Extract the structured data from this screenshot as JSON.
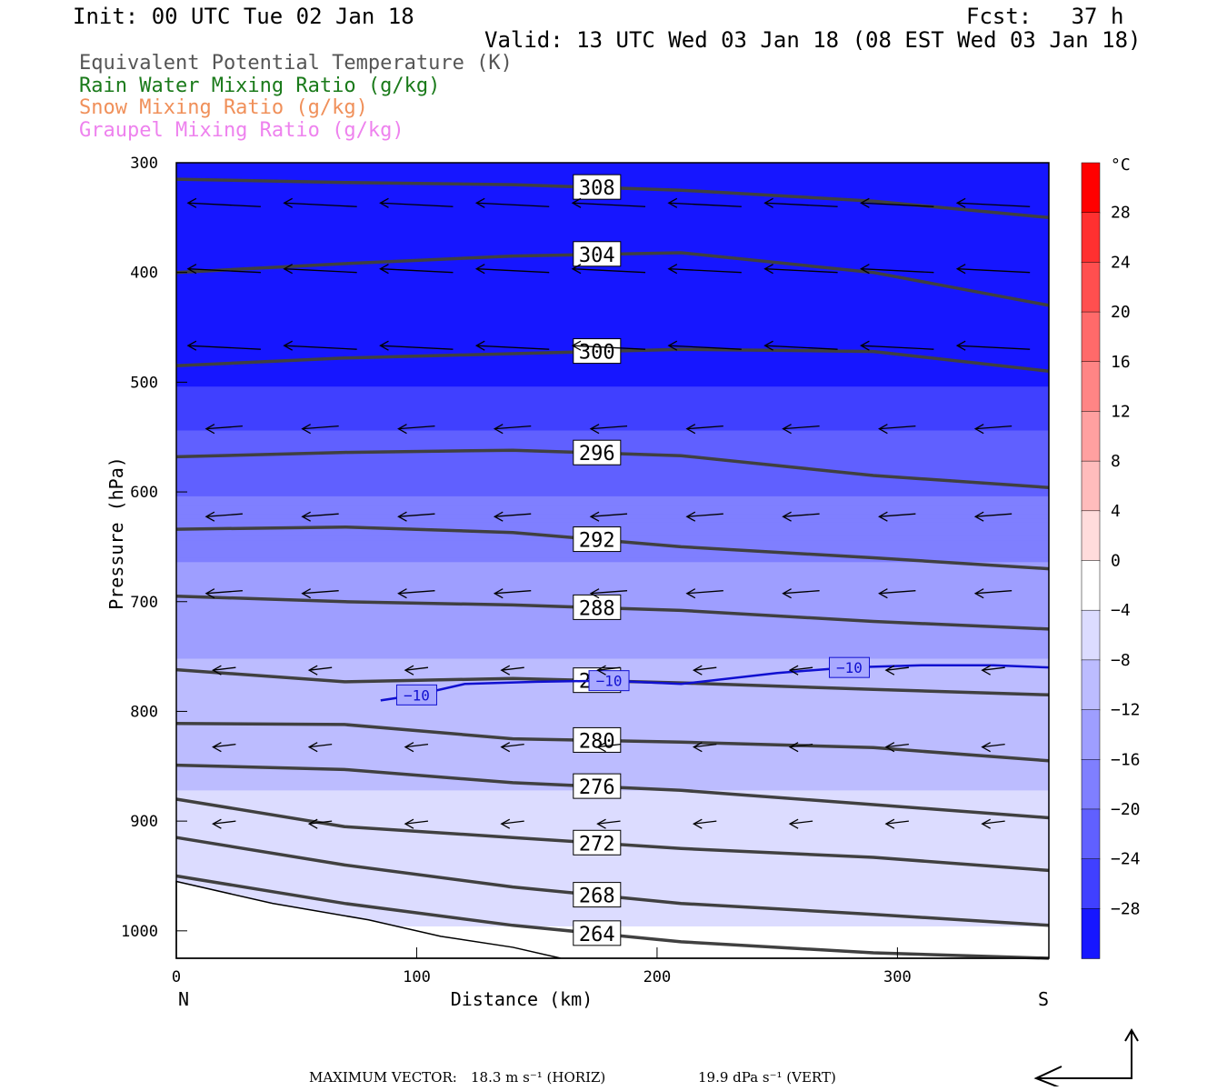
{
  "header": {
    "init": "Init: 00 UTC Tue 02 Jan 18",
    "fcst": "Fcst:   37 h",
    "valid": "Valid: 13 UTC Wed 03 Jan 18 (08 EST Wed 03 Jan 18)"
  },
  "variables": [
    {
      "label": "Equivalent Potential Temperature (K)",
      "color": "#555555"
    },
    {
      "label": "Rain Water Mixing Ratio (g/kg)",
      "color": "#1a7a1a"
    },
    {
      "label": "Snow Mixing Ratio (g/kg)",
      "color": "#f0905a"
    },
    {
      "label": "Graupel Mixing Ratio (g/kg)",
      "color": "#ee82ee"
    }
  ],
  "footer": {
    "label": "MAXIMUM VECTOR:",
    "horiz": "18.3 m s⁻¹ (HORIZ)",
    "vert": "19.9 dPa s⁻¹ (VERT)"
  },
  "chart_data": {
    "type": "heatmap",
    "xlabel": "Distance (km)",
    "ylabel": "Pressure (hPa)",
    "xlim": [
      0,
      363
    ],
    "ylim": [
      1025,
      300
    ],
    "x_ticks": [
      0,
      100,
      200,
      300
    ],
    "y_ticks": [
      300,
      400,
      500,
      600,
      700,
      800,
      900,
      1000
    ],
    "x_end_labels": {
      "left": "N",
      "right": "S"
    },
    "colorbar": {
      "unit": "°C",
      "tick_labels": [
        "28",
        "24",
        "20",
        "16",
        "12",
        "8",
        "4",
        "0",
        "−4",
        "−8",
        "−12",
        "−16",
        "−20",
        "−24",
        "−28"
      ],
      "levels": [
        32,
        28,
        24,
        20,
        16,
        12,
        8,
        4,
        0,
        -4,
        -8,
        -12,
        -16,
        -20,
        -24,
        -28,
        -32
      ],
      "colors": [
        "#ff0000",
        "#ff3030",
        "#ff4f4f",
        "#ff6a6a",
        "#ff8585",
        "#ffa0a0",
        "#ffbcbc",
        "#ffdcdc",
        "#ffffff",
        "#dcdcff",
        "#bcbcff",
        "#9e9eff",
        "#7f7fff",
        "#6060ff",
        "#4040ff",
        "#1616ff"
      ]
    },
    "temperature_field": {
      "description_levels_hpa": [
        300,
        400,
        480,
        540,
        600,
        660,
        720,
        780,
        840,
        900,
        960,
        1025
      ],
      "temp_c": [
        -32,
        -32,
        -30,
        -24,
        -20,
        -16,
        -13,
        -11,
        -9,
        -7,
        -5,
        -3
      ]
    },
    "theta_e_contours": [
      {
        "value": 308,
        "label": "308",
        "p": [
          315,
          318,
          320,
          325,
          335,
          350
        ]
      },
      {
        "value": 304,
        "label": "304",
        "p": [
          400,
          392,
          385,
          382,
          400,
          430
        ]
      },
      {
        "value": 300,
        "label": "300",
        "p": [
          485,
          478,
          474,
          470,
          472,
          490
        ]
      },
      {
        "value": 296,
        "label": "296",
        "p": [
          568,
          564,
          562,
          567,
          585,
          596
        ]
      },
      {
        "value": 292,
        "label": "292",
        "p": [
          634,
          632,
          637,
          650,
          660,
          670
        ]
      },
      {
        "value": 288,
        "label": "288",
        "p": [
          695,
          700,
          703,
          708,
          718,
          725
        ]
      },
      {
        "value": 284,
        "label": "284",
        "p": [
          762,
          773,
          770,
          774,
          780,
          785
        ]
      },
      {
        "value": 280,
        "label": "280",
        "p": [
          811,
          812,
          825,
          828,
          833,
          845
        ]
      },
      {
        "value": 276,
        "label": "276",
        "p": [
          849,
          853,
          865,
          872,
          885,
          897
        ]
      },
      {
        "value": 272,
        "label": "272",
        "p": [
          880,
          905,
          915,
          925,
          933,
          945
        ]
      },
      {
        "value": 268,
        "label": "268",
        "p": [
          915,
          940,
          960,
          975,
          985,
          995
        ]
      },
      {
        "value": 264,
        "label": "264",
        "p": [
          950,
          975,
          995,
          1010,
          1020,
          1025
        ]
      }
    ],
    "contour_x_km": [
      0,
      70,
      140,
      210,
      290,
      363
    ],
    "minus10_isotherm": {
      "label": "−10",
      "x": [
        85,
        100,
        120,
        150,
        180,
        210,
        250,
        280,
        310,
        340,
        363
      ],
      "p": [
        790,
        785,
        775,
        773,
        772,
        775,
        765,
        760,
        758,
        758,
        760
      ]
    },
    "terrain_p": [
      955,
      975,
      990,
      1005,
      1015,
      1025,
      1025,
      1025,
      1025,
      1025,
      1025
    ],
    "terrain_x": [
      0,
      40,
      80,
      110,
      140,
      160,
      200,
      240,
      280,
      320,
      363
    ]
  },
  "arrow_icon": "max-vector-arrow-icon"
}
